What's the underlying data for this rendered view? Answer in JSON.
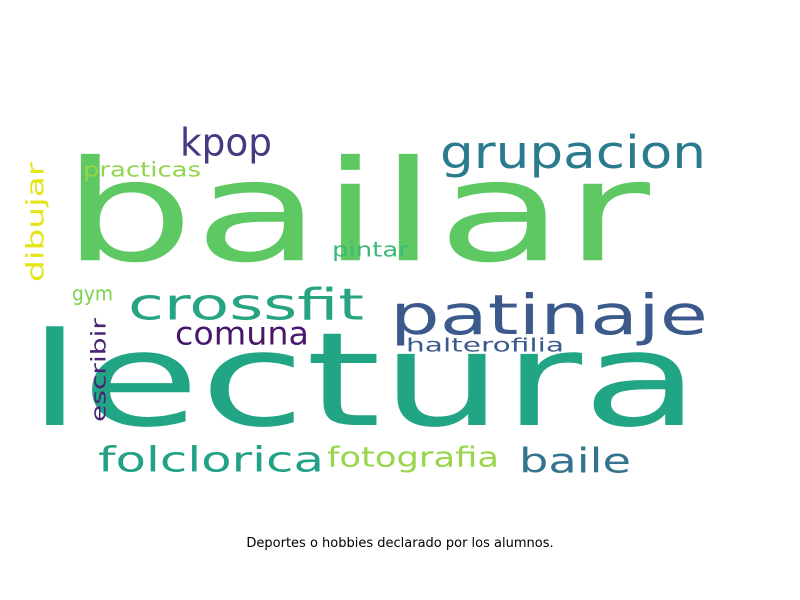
{
  "caption": "Deportes o hobbies declarado por los alumnos.",
  "words": [
    {
      "text": "bailar",
      "color": "#5ec962"
    },
    {
      "text": "lectura",
      "color": "#21a585"
    },
    {
      "text": "patinaje",
      "color": "#3b5a8b"
    },
    {
      "text": "grupacion",
      "color": "#2a7b8e"
    },
    {
      "text": "crossfit",
      "color": "#27a582"
    },
    {
      "text": "kpop",
      "color": "#443983"
    },
    {
      "text": "comuna",
      "color": "#46176a"
    },
    {
      "text": "folclorica",
      "color": "#22a186"
    },
    {
      "text": "baile",
      "color": "#34738e"
    },
    {
      "text": "fotografia",
      "color": "#99d64b"
    },
    {
      "text": "halterofilia",
      "color": "#3b5a8b"
    },
    {
      "text": "practicas",
      "color": "#92d54d"
    },
    {
      "text": "dibujar",
      "color": "#e4e419"
    },
    {
      "text": "pintar",
      "color": "#3ab979"
    },
    {
      "text": "gym",
      "color": "#7cd250"
    },
    {
      "text": "escribir",
      "color": "#482475"
    }
  ]
}
